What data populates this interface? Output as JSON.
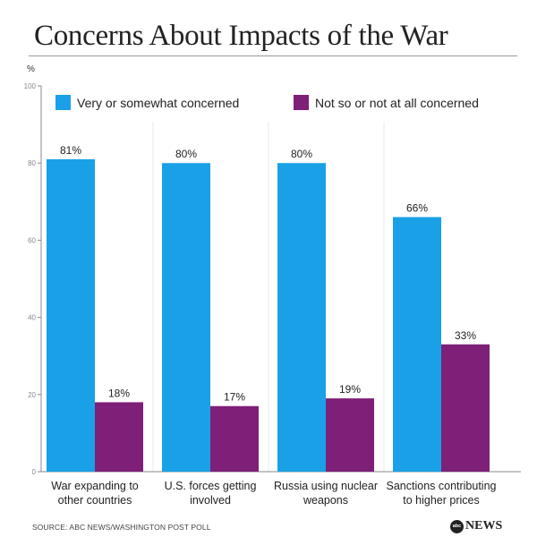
{
  "title": "Concerns About Impacts of the War",
  "source": "SOURCE: ABC NEWS/WASHINGTON POST POLL",
  "brand": "NEWS",
  "brand_logo_text": "abc",
  "colors": {
    "series_1": "#1aa0e6",
    "series_2": "#7e1f78",
    "axis": "#888888",
    "grid": "#e9e9e9"
  },
  "chart_data": {
    "type": "bar",
    "ylabel": "%",
    "ylim": [
      0,
      100
    ],
    "yticks": [
      0,
      20,
      40,
      60,
      80,
      100
    ],
    "grid": false,
    "legend_position": "top",
    "categories": [
      [
        "War expanding to",
        "other countries"
      ],
      [
        "U.S. forces getting",
        "involved"
      ],
      [
        "Russia using nuclear",
        "weapons"
      ],
      [
        "Sanctions contributing",
        "to higher prices"
      ]
    ],
    "series": [
      {
        "name": "Very or somewhat concerned",
        "values": [
          81,
          80,
          80,
          66
        ],
        "labels": [
          "81%",
          "80%",
          "80%",
          "66%"
        ]
      },
      {
        "name": "Not so or not at all concerned",
        "values": [
          18,
          17,
          19,
          33
        ],
        "labels": [
          "18%",
          "17%",
          "19%",
          "33%"
        ]
      }
    ]
  }
}
